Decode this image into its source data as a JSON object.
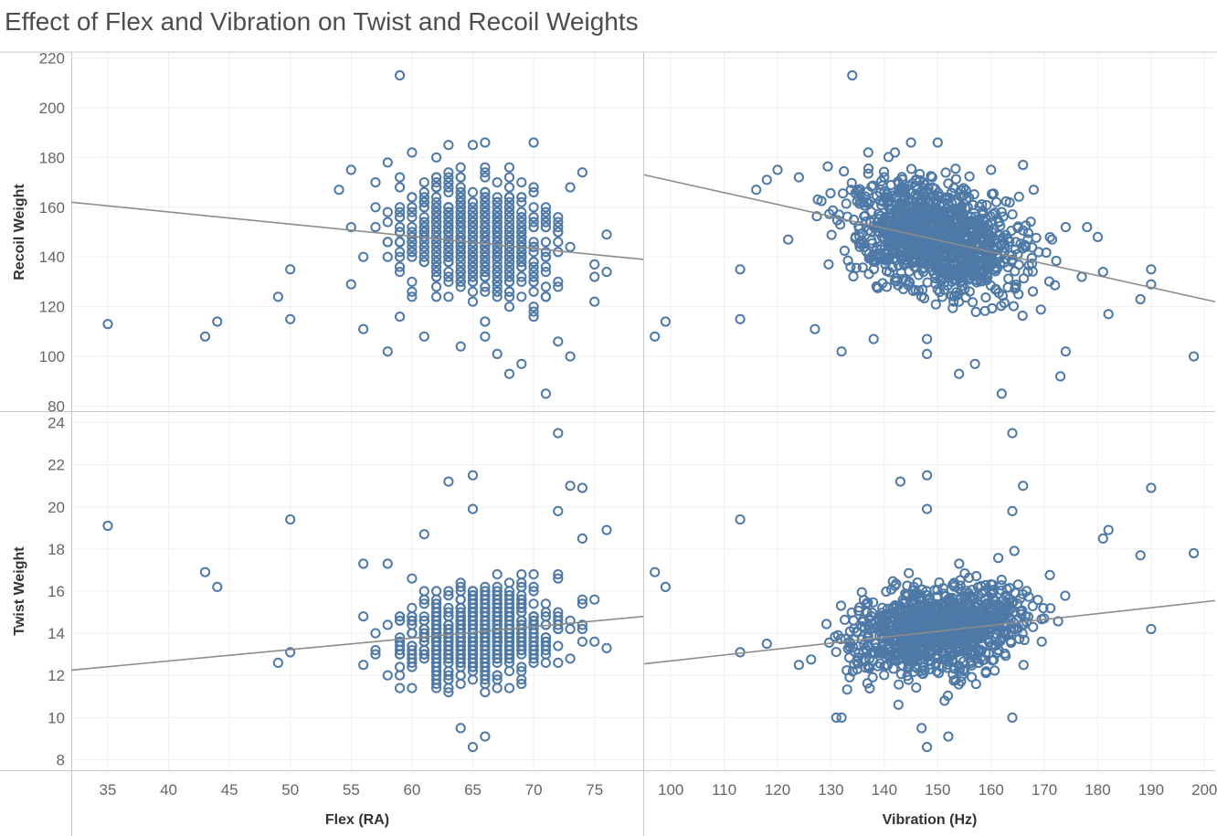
{
  "chart_data": {
    "type": "scatter",
    "title": "Effect of Flex and Vibration on Twist and Recoil Weights",
    "columns": [
      {
        "key": "flex",
        "label": "Flex (RA)",
        "xlim": [
          32,
          79
        ],
        "ticks": [
          35,
          40,
          45,
          50,
          55,
          60,
          65,
          70,
          75
        ]
      },
      {
        "key": "vibration",
        "label": "Vibration (Hz)",
        "xlim": [
          95,
          202
        ],
        "ticks": [
          100,
          110,
          120,
          130,
          140,
          150,
          160,
          170,
          180,
          190,
          200
        ]
      }
    ],
    "rows": [
      {
        "key": "recoil",
        "label": "Recoil Weight",
        "ylim": [
          78,
          222
        ],
        "ticks": [
          80,
          100,
          120,
          140,
          160,
          180,
          200,
          220
        ]
      },
      {
        "key": "twist",
        "label": "Twist Weight",
        "ylim": [
          7.5,
          24.5
        ],
        "ticks": [
          8,
          10,
          12,
          14,
          16,
          18,
          20,
          22,
          24
        ]
      }
    ],
    "grid": true,
    "marker": {
      "shape": "circle",
      "fill": "none",
      "color": "#4e79a7"
    },
    "trend_color": "#8c8c8c",
    "divider_color": "#c8c8c8",
    "gridline_color": "#efefef",
    "panels": [
      {
        "row": "recoil",
        "col": "flex",
        "trend": [
          [
            32,
            162
          ],
          [
            79,
            139
          ]
        ],
        "points": [
          [
            35,
            113
          ],
          [
            43,
            108
          ],
          [
            44,
            114
          ],
          [
            49,
            124
          ],
          [
            50,
            135
          ],
          [
            50,
            115
          ],
          [
            56,
            111
          ],
          [
            58,
            102
          ],
          [
            59,
            213
          ],
          [
            71,
            85
          ],
          [
            68,
            93
          ],
          [
            69,
            97
          ],
          [
            66,
            186
          ],
          [
            70,
            186
          ],
          [
            73,
            100
          ],
          [
            54,
            167
          ],
          [
            55,
            175
          ],
          [
            55,
            152
          ],
          [
            55,
            129
          ],
          [
            75,
            137
          ],
          [
            76,
            134
          ],
          [
            76,
            149
          ],
          [
            75,
            122
          ],
          [
            74,
            174
          ],
          [
            72,
            106
          ],
          [
            65,
            185
          ],
          [
            63,
            185
          ],
          [
            60,
            182
          ],
          [
            62,
            180
          ],
          [
            64,
            104
          ],
          [
            67,
            101
          ],
          [
            57,
            170
          ],
          [
            58,
            178
          ],
          [
            61,
            108
          ],
          [
            66,
            108
          ]
        ],
        "cloud": {
          "x": [
            54,
            76
          ],
          "y": [
            95,
            180
          ],
          "cx": 65.5,
          "sx": 4.5,
          "cy": 147,
          "sy": 15,
          "slope": -0.6,
          "n": 750,
          "xstep": 1,
          "ystep": 2
        }
      },
      {
        "row": "recoil",
        "col": "vibration",
        "trend": [
          [
            95,
            173
          ],
          [
            202,
            122
          ]
        ],
        "points": [
          [
            97,
            108
          ],
          [
            99,
            114
          ],
          [
            113,
            135
          ],
          [
            113,
            115
          ],
          [
            116,
            167
          ],
          [
            118,
            171
          ],
          [
            120,
            175
          ],
          [
            134,
            213
          ],
          [
            162,
            85
          ],
          [
            198,
            100
          ],
          [
            173,
            92
          ],
          [
            174,
            102
          ],
          [
            188,
            123
          ],
          [
            190,
            135
          ],
          [
            190,
            129
          ],
          [
            182,
            117
          ],
          [
            181,
            134
          ],
          [
            177,
            132
          ],
          [
            174,
            152
          ],
          [
            178,
            152
          ],
          [
            180,
            148
          ],
          [
            154,
            93
          ],
          [
            157,
            97
          ],
          [
            148,
            101
          ],
          [
            132,
            102
          ],
          [
            138,
            107
          ],
          [
            148,
            107
          ],
          [
            145,
            186
          ],
          [
            150,
            186
          ],
          [
            142,
            182
          ],
          [
            137,
            182
          ],
          [
            166,
            177
          ],
          [
            160,
            175
          ],
          [
            168,
            167
          ],
          [
            127,
            111
          ],
          [
            124,
            172
          ],
          [
            122,
            147
          ]
        ],
        "cloud": {
          "x": [
            118,
            185
          ],
          "y": [
            96,
            182
          ],
          "cx": 150,
          "sx": 11,
          "cy": 148,
          "sy": 15,
          "slope": -0.45,
          "n": 1100,
          "xstep": 0,
          "ystep": 0
        }
      },
      {
        "row": "twist",
        "col": "flex",
        "trend": [
          [
            32,
            12.25
          ],
          [
            79,
            14.8
          ]
        ],
        "points": [
          [
            35,
            19.1
          ],
          [
            43,
            16.9
          ],
          [
            44,
            16.2
          ],
          [
            49,
            12.6
          ],
          [
            50,
            13.1
          ],
          [
            50,
            19.4
          ],
          [
            72,
            23.5
          ],
          [
            65,
            21.5
          ],
          [
            63,
            21.2
          ],
          [
            65,
            19.9
          ],
          [
            73,
            21.0
          ],
          [
            74,
            20.9
          ],
          [
            72,
            19.8
          ],
          [
            76,
            18.9
          ],
          [
            74,
            18.5
          ],
          [
            61,
            18.7
          ],
          [
            65,
            8.6
          ],
          [
            66,
            9.1
          ],
          [
            64,
            9.5
          ],
          [
            56,
            12.5
          ],
          [
            75,
            13.6
          ],
          [
            76,
            13.3
          ],
          [
            56,
            17.3
          ],
          [
            58,
            17.3
          ],
          [
            60,
            16.6
          ]
        ],
        "cloud": {
          "x": [
            54,
            76
          ],
          "y": [
            9.5,
            18.5
          ],
          "cx": 65.5,
          "sx": 4.5,
          "cy": 14.0,
          "sy": 1.5,
          "slope": 0.06,
          "n": 750,
          "xstep": 1,
          "ystep": 0.2
        }
      },
      {
        "row": "twist",
        "col": "vibration",
        "trend": [
          [
            95,
            12.55
          ],
          [
            202,
            15.55
          ]
        ],
        "points": [
          [
            97,
            16.9
          ],
          [
            99,
            16.2
          ],
          [
            113,
            19.4
          ],
          [
            113,
            13.1
          ],
          [
            164,
            23.5
          ],
          [
            148,
            21.5
          ],
          [
            143,
            21.2
          ],
          [
            148,
            19.9
          ],
          [
            164,
            19.8
          ],
          [
            166,
            21.0
          ],
          [
            190,
            20.9
          ],
          [
            198,
            17.8
          ],
          [
            188,
            17.7
          ],
          [
            182,
            18.9
          ],
          [
            181,
            18.5
          ],
          [
            190,
            14.2
          ],
          [
            148,
            8.6
          ],
          [
            152,
            9.1
          ],
          [
            147,
            9.5
          ],
          [
            164,
            10.0
          ],
          [
            124,
            12.5
          ],
          [
            131,
            10.0
          ],
          [
            132,
            10.0
          ],
          [
            118,
            13.5
          ]
        ],
        "cloud": {
          "x": [
            118,
            182
          ],
          "y": [
            9.5,
            18.5
          ],
          "cx": 150,
          "sx": 11,
          "cy": 14.2,
          "sy": 1.4,
          "slope": 0.03,
          "n": 1100,
          "xstep": 0,
          "ystep": 0
        }
      }
    ]
  }
}
